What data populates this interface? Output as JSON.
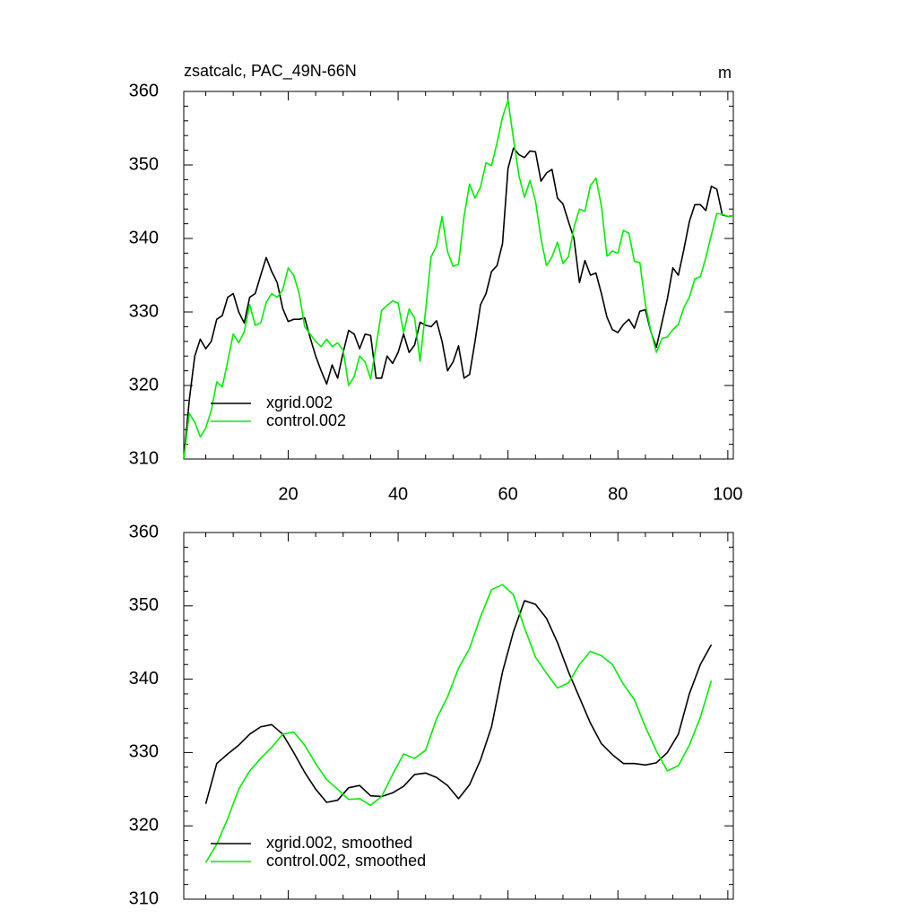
{
  "chart_data": [
    {
      "type": "line",
      "title": "zsatcalc, PAC_49N-66N",
      "units": "m",
      "x": [
        1,
        2,
        3,
        4,
        5,
        6,
        7,
        8,
        9,
        10,
        11,
        12,
        13,
        14,
        15,
        16,
        17,
        18,
        19,
        20,
        21,
        22,
        23,
        24,
        25,
        26,
        27,
        28,
        29,
        30,
        31,
        32,
        33,
        34,
        35,
        36,
        37,
        38,
        39,
        40,
        41,
        42,
        43,
        44,
        45,
        46,
        47,
        48,
        49,
        50,
        51,
        52,
        53,
        54,
        55,
        56,
        57,
        58,
        59,
        60,
        61,
        62,
        63,
        64,
        65,
        66,
        67,
        68,
        69,
        70,
        71,
        72,
        73,
        74,
        75,
        76,
        77,
        78,
        79,
        80,
        81,
        82,
        83,
        84,
        85,
        86,
        87,
        88,
        89,
        90,
        91,
        92,
        93,
        94,
        95,
        96,
        97,
        98,
        99,
        100,
        101
      ],
      "series": [
        {
          "name": "xgrid.002",
          "color": "#000000",
          "values": [
            310,
            318,
            324,
            326.3,
            325,
            326,
            329,
            329.5,
            332,
            332.5,
            330,
            328.5,
            332,
            332.5,
            335,
            337.4,
            335.5,
            334,
            330.5,
            328.7,
            329,
            329,
            329.2,
            326.5,
            324,
            322,
            320.2,
            322.8,
            321,
            324.5,
            327.5,
            327,
            325,
            327,
            326.8,
            321,
            321,
            324,
            323,
            324.5,
            327,
            324.5,
            325.5,
            328.6,
            328.2,
            328,
            328.8,
            326,
            322,
            323.2,
            325.4,
            321,
            321.5,
            326,
            331,
            332.5,
            335.5,
            336.3,
            339.3,
            349.5,
            352.3,
            351.4,
            351,
            351.9,
            351.8,
            347.8,
            348.9,
            349.4,
            345.5,
            344.7,
            342.3,
            340,
            334,
            337,
            335,
            335.3,
            332.5,
            329.3,
            327.6,
            327.2,
            328.3,
            329,
            327.8,
            330.1,
            330.3,
            327.3,
            325.2,
            328.5,
            331.8,
            336,
            335,
            338.5,
            342.3,
            344.6,
            344.6,
            343.8,
            347.1,
            346.7,
            343.2,
            343,
            343.1
          ]
        },
        {
          "name": "control.002",
          "color": "#00ee00",
          "values": [
            310,
            316.2,
            315,
            313,
            314.2,
            316.6,
            320.5,
            319.8,
            323.3,
            327,
            325.8,
            327.3,
            331,
            328.2,
            328.5,
            331.3,
            332.5,
            332,
            333,
            336,
            335,
            332.5,
            328,
            327,
            326,
            325.3,
            326.3,
            325.3,
            325.8,
            324.8,
            320,
            321.2,
            324,
            323.2,
            320.9,
            325.4,
            330.2,
            330.9,
            331.5,
            331.2,
            327.2,
            330.4,
            329.2,
            323.3,
            330.2,
            337.5,
            339,
            343,
            338.2,
            336.2,
            336.5,
            343,
            347.4,
            345.5,
            347,
            350.3,
            349.9,
            353,
            356.5,
            358.8,
            353.5,
            348.5,
            345.6,
            347.9,
            345.1,
            340,
            336.3,
            337.5,
            339.5,
            336.6,
            337.5,
            341.5,
            344,
            343.7,
            347.2,
            348.2,
            344.4,
            337.6,
            338.3,
            338,
            341.1,
            340.7,
            336.9,
            336.7,
            331,
            327.4,
            324.5,
            326.4,
            326.6,
            327.6,
            328.3,
            330.6,
            332,
            334.5,
            334.8,
            337.4,
            340.5,
            343.4,
            343.3,
            343,
            343.1
          ]
        }
      ],
      "xlim": [
        1,
        101
      ],
      "ylim": [
        310,
        360
      ],
      "xticks": [
        20,
        40,
        60,
        80,
        100
      ],
      "yticks": [
        310,
        320,
        330,
        340,
        350,
        360
      ],
      "minor_xticks": [
        5,
        10,
        15,
        25,
        30,
        35,
        45,
        50,
        55,
        65,
        70,
        75,
        85,
        90,
        95
      ],
      "minor_yticks": [
        312,
        314,
        316,
        318,
        322,
        324,
        326,
        328,
        332,
        334,
        336,
        338,
        342,
        344,
        346,
        348,
        352,
        354,
        356,
        358
      ],
      "xtick_labels": true,
      "legend": "bottom-left"
    },
    {
      "type": "line",
      "x": [
        5,
        7,
        9,
        11,
        13,
        15,
        17,
        19,
        21,
        23,
        25,
        27,
        29,
        31,
        33,
        35,
        37,
        39,
        41,
        43,
        45,
        47,
        49,
        51,
        53,
        55,
        57,
        59,
        61,
        63,
        65,
        67,
        69,
        71,
        73,
        75,
        77,
        79,
        81,
        83,
        85,
        87,
        89,
        91,
        93,
        95,
        97
      ],
      "series": [
        {
          "name": "xgrid.002, smoothed",
          "color": "#000000",
          "values": [
            323,
            328.5,
            329.8,
            331,
            332.5,
            333.5,
            333.8,
            332.5,
            330,
            327.3,
            325,
            323.2,
            323.5,
            325.2,
            325.5,
            324.1,
            324,
            324.5,
            325.4,
            327,
            327.2,
            326.6,
            325.5,
            323.7,
            325.6,
            329,
            333.5,
            341,
            346.5,
            350.7,
            350.2,
            348.3,
            345,
            341,
            337.5,
            334,
            331.2,
            329.7,
            328.5,
            328.5,
            328.3,
            328.6,
            330,
            332.5,
            338,
            342,
            344.7
          ]
        },
        {
          "name": "control.002, smoothed",
          "color": "#00ee00",
          "values": [
            315,
            317.5,
            321,
            325,
            327.5,
            329.2,
            330.7,
            332.5,
            332.8,
            331,
            328.5,
            326.3,
            325,
            323.6,
            323.7,
            322.8,
            324,
            327,
            329.8,
            329.2,
            330.3,
            334.6,
            337.6,
            341.5,
            344.2,
            348.5,
            352.2,
            352.9,
            351.5,
            347,
            343,
            340.8,
            338.8,
            339.5,
            342,
            343.8,
            343.2,
            342,
            339.3,
            337.2,
            333.5,
            330.2,
            327.5,
            328.2,
            331,
            334.8,
            339.8
          ]
        }
      ],
      "xlim": [
        1,
        101
      ],
      "ylim": [
        310,
        360
      ],
      "xticks": [
        20,
        40,
        60,
        80,
        100
      ],
      "yticks": [
        310,
        320,
        330,
        340,
        350,
        360
      ],
      "minor_xticks": [
        5,
        10,
        15,
        25,
        30,
        35,
        45,
        50,
        55,
        65,
        70,
        75,
        85,
        90,
        95
      ],
      "minor_yticks": [
        312,
        314,
        316,
        318,
        322,
        324,
        326,
        328,
        332,
        334,
        336,
        338,
        342,
        344,
        346,
        348,
        352,
        354,
        356,
        358
      ],
      "xtick_labels": false,
      "legend": "bottom-left"
    }
  ]
}
